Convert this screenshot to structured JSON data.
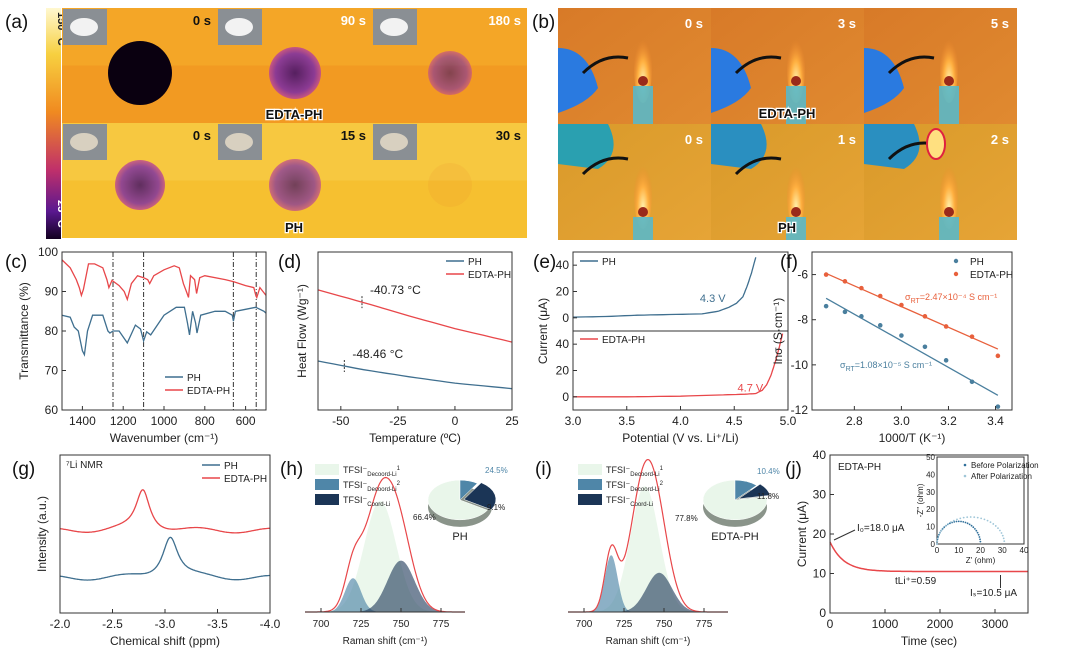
{
  "panels": {
    "a": {
      "label": "(a)",
      "colorbar": {
        "max": "150 °C",
        "min": "25 °C"
      },
      "rows": [
        {
          "sample": "EDTA-PH",
          "times": [
            "0 s",
            "90 s",
            "180 s"
          ],
          "spot_visibility": [
            1.0,
            0.85,
            0.6
          ]
        },
        {
          "sample": "PH",
          "times": [
            "0 s",
            "15 s",
            "30 s"
          ],
          "spot_visibility": [
            0.8,
            0.7,
            0.15
          ]
        }
      ]
    },
    "b": {
      "label": "(b)",
      "rows": [
        {
          "sample": "EDTA-PH",
          "times": [
            "0 s",
            "3 s",
            "5 s"
          ]
        },
        {
          "sample": "PH",
          "times": [
            "0 s",
            "1 s",
            "2 s"
          ]
        }
      ]
    },
    "g_label": "(g)",
    "h_label": "(h)",
    "i_label": "(i)",
    "j_label": "(j)"
  },
  "colors": {
    "PH": "#3f6f8f",
    "EDTA-PH": "#e8474a",
    "comp1": "#e9f6ea",
    "comp2": "#4f86a8",
    "comp3": "#1b3556"
  },
  "chart_data": [
    {
      "id": "c",
      "label": "(c)",
      "type": "line",
      "xlabel": "Wavenumber (cm⁻¹)",
      "ylabel": "Transmittance (%)",
      "xlim": [
        1500,
        500
      ],
      "ylim": [
        60,
        100
      ],
      "xticks": [
        1400,
        1200,
        1000,
        800,
        600
      ],
      "yticks": [
        60,
        70,
        80,
        90,
        100
      ],
      "vlines": [
        1250,
        1100,
        660,
        548
      ],
      "legend": "bottom-right",
      "series": [
        {
          "name": "PH",
          "x": [
            1500,
            1460,
            1440,
            1420,
            1400,
            1390,
            1375,
            1350,
            1300,
            1275,
            1265,
            1250,
            1220,
            1180,
            1140,
            1115,
            1100,
            1085,
            1065,
            1000,
            940,
            900,
            885,
            875,
            860,
            845,
            838,
            820,
            750,
            700,
            665,
            660,
            650,
            600,
            550,
            510,
            500
          ],
          "y": [
            84,
            83.5,
            81,
            80,
            75,
            74,
            80,
            84,
            84,
            80,
            79.5,
            80,
            80,
            77,
            81.5,
            80.5,
            77.5,
            79.8,
            79,
            84,
            86,
            86,
            82,
            79,
            85,
            82,
            79.5,
            84,
            85,
            85,
            84,
            82.5,
            85,
            85.5,
            86,
            85,
            84.5
          ]
        },
        {
          "name": "EDTA-PH",
          "x": [
            1500,
            1460,
            1430,
            1415,
            1405,
            1395,
            1370,
            1340,
            1300,
            1280,
            1270,
            1255,
            1220,
            1195,
            1180,
            1160,
            1130,
            1100,
            1080,
            1070,
            1050,
            1000,
            950,
            925,
            905,
            890,
            880,
            870,
            850,
            840,
            825,
            800,
            700,
            660,
            600,
            560,
            550,
            545,
            530,
            500
          ],
          "y": [
            98,
            96,
            93,
            91,
            89,
            90.5,
            97,
            97,
            96,
            93,
            91,
            92.8,
            91.5,
            90,
            88,
            92,
            94,
            93.5,
            93,
            92,
            94,
            95.5,
            96.5,
            96,
            92,
            90,
            88.5,
            94,
            93,
            89.5,
            93.5,
            94,
            93,
            92.5,
            91.5,
            91,
            89,
            88.5,
            91,
            89
          ]
        }
      ]
    },
    {
      "id": "d",
      "label": "(d)",
      "type": "line",
      "xlabel": "Temperature (ºC)",
      "ylabel": "Heat Flow (Wg⁻¹)",
      "xlim": [
        -60,
        25
      ],
      "ylim": [
        0,
        10
      ],
      "xticks": [
        -50,
        -25,
        0,
        25
      ],
      "legend": "top-right",
      "series": [
        {
          "name": "PH",
          "x": [
            -60,
            -40,
            -20,
            0,
            25
          ],
          "y": [
            3.1,
            2.55,
            2.1,
            1.7,
            1.35
          ],
          "tg": -48.46,
          "tg_label": "-48.46 °C"
        },
        {
          "name": "EDTA-PH",
          "x": [
            -60,
            -40,
            -20,
            0,
            25
          ],
          "y": [
            7.6,
            6.8,
            5.95,
            5.15,
            4.3
          ],
          "tg": -40.73,
          "tg_label": "-40.73 °C"
        }
      ]
    },
    {
      "id": "e",
      "label": "(e)",
      "type": "line",
      "xlabel": "Potential (V vs. Li⁺/Li)",
      "ylabel": "Current (μA)",
      "xlim": [
        3.0,
        5.0
      ],
      "ylim": [
        -10,
        50
      ],
      "xticks": [
        3.0,
        3.5,
        4.0,
        4.5,
        5.0
      ],
      "yticks": [
        0,
        20,
        40
      ],
      "series": [
        {
          "name": "PH",
          "x": [
            3.0,
            3.3,
            3.6,
            3.9,
            4.2,
            4.35,
            4.45,
            4.52,
            4.58,
            4.62,
            4.66,
            4.7
          ],
          "y": [
            0.5,
            1,
            2,
            2.5,
            3,
            5,
            8,
            11,
            16,
            24,
            34,
            46
          ],
          "window_label": "4.3 V"
        },
        {
          "name": "EDTA-PH",
          "x": [
            3.0,
            3.5,
            4.0,
            4.4,
            4.6,
            4.7,
            4.76,
            4.8,
            4.84,
            4.88,
            4.92,
            4.95
          ],
          "y": [
            0,
            0,
            0.5,
            1.5,
            2,
            2.5,
            5,
            9,
            16,
            26,
            38,
            48
          ],
          "window_label": "4.7 V"
        }
      ]
    },
    {
      "id": "f",
      "label": "(f)",
      "type": "scatter",
      "xlabel": "1000/T (K⁻¹)",
      "ylabel": "lnσ (S·cm⁻¹)",
      "xlim": [
        2.62,
        3.47
      ],
      "ylim": [
        -12,
        -5
      ],
      "xticks": [
        2.8,
        3.0,
        3.2,
        3.4
      ],
      "yticks": [
        -12,
        -10,
        -8,
        -6
      ],
      "legend": "top-right",
      "series": [
        {
          "name": "PH",
          "x": [
            2.68,
            2.76,
            2.83,
            2.91,
            3.0,
            3.1,
            3.19,
            3.3,
            3.41
          ],
          "y": [
            -7.4,
            -7.65,
            -7.85,
            -8.25,
            -8.7,
            -9.2,
            -9.8,
            -10.75,
            -11.85
          ],
          "fit": [
            [
              2.68,
              -7.05
            ],
            [
              3.41,
              -11.35
            ]
          ],
          "sigma": {
            "sym": "σ",
            "sub": "RT",
            "val": "=1.08×10⁻⁵ S cm⁻¹"
          }
        },
        {
          "name": "EDTA-PH",
          "x": [
            2.68,
            2.76,
            2.83,
            2.91,
            3.0,
            3.1,
            3.19,
            3.3,
            3.41
          ],
          "y": [
            -6.0,
            -6.3,
            -6.6,
            -6.95,
            -7.35,
            -7.85,
            -8.3,
            -8.75,
            -9.6
          ],
          "fit": [
            [
              2.68,
              -5.95
            ],
            [
              3.41,
              -9.3
            ]
          ],
          "sigma": {
            "sym": "σ",
            "sub": "RT",
            "val": "=2.47×10⁻⁴ S cm⁻¹"
          }
        }
      ]
    },
    {
      "id": "g",
      "label": "(g)",
      "type": "line",
      "title": "⁷Li NMR",
      "xlabel": "Chemical shift (ppm)",
      "ylabel": "Intensity (a.u.)",
      "xlim": [
        -2.0,
        -4.0
      ],
      "ylim": [
        0,
        10
      ],
      "xticks": [
        -2.0,
        -2.5,
        -3.0,
        -3.5,
        -4.0
      ],
      "legend": "top-right",
      "series": [
        {
          "name": "PH",
          "peak": -3.05,
          "width": 0.09,
          "baseline": 2.2,
          "height": 2.7
        },
        {
          "name": "EDTA-PH",
          "peak": -2.79,
          "width": 0.08,
          "baseline": 5.2,
          "height": 2.6
        }
      ]
    },
    {
      "id": "h",
      "label": "(h)",
      "type": "area",
      "xlabel": "Raman shift (cm⁻¹)",
      "xlim": [
        690,
        790
      ],
      "ylim": [
        0,
        1.05
      ],
      "xticks": [
        700,
        725,
        750,
        775
      ],
      "components": [
        {
          "name": "TFSI⁻",
          "sub": "Decoord-Li",
          "sup": "1",
          "center": 737,
          "sigma": 10,
          "amp": 0.82
        },
        {
          "name": "TFSI⁻",
          "sub": "Decoord-Li",
          "sup": "2",
          "center": 720,
          "sigma": 5,
          "amp": 0.25
        },
        {
          "name": "TFSI⁻",
          "sub": "Coord-Li",
          "sup": "",
          "center": 750,
          "sigma": 8.5,
          "amp": 0.38
        }
      ],
      "pie": {
        "title": "PH",
        "values": [
          66.4,
          9.1,
          24.5
        ],
        "labels": [
          "66.4%",
          "9.1%",
          "24.5%"
        ]
      }
    },
    {
      "id": "i",
      "label": "(i)",
      "type": "area",
      "xlabel": "Raman shift (cm⁻¹)",
      "xlim": [
        690,
        790
      ],
      "ylim": [
        0,
        1.05
      ],
      "xticks": [
        700,
        725,
        750,
        775
      ],
      "components": [
        {
          "name": "TFSI⁻",
          "sub": "Decoord-Li",
          "sup": "1",
          "center": 738,
          "sigma": 9,
          "amp": 0.93
        },
        {
          "name": "TFSI⁻",
          "sub": "Decoord-Li",
          "sup": "2",
          "center": 717,
          "sigma": 4,
          "amp": 0.42
        },
        {
          "name": "TFSI⁻",
          "sub": "Coord-Li",
          "sup": "",
          "center": 747,
          "sigma": 8,
          "amp": 0.29
        }
      ],
      "pie": {
        "title": "EDTA-PH",
        "values": [
          77.8,
          11.8,
          10.4
        ],
        "labels": [
          "77.8%",
          "11.8%",
          "10.4%"
        ]
      }
    },
    {
      "id": "j",
      "label": "(j)",
      "type": "line",
      "title": "EDTA-PH",
      "xlabel": "Time (sec)",
      "ylabel": "Current (μA)",
      "xlim": [
        0,
        3600
      ],
      "ylim": [
        0,
        40
      ],
      "xticks": [
        0,
        1000,
        2000,
        3000
      ],
      "yticks": [
        10,
        20,
        30,
        40
      ],
      "series": [
        {
          "name": "EDTA-PH",
          "I0": 18.0,
          "Is": 10.5,
          "tau": 250
        }
      ],
      "annotations": {
        "I0": "I₀=18.0 μA",
        "Is": "Iₛ=10.5 μA",
        "t": "tLi⁺=0.59"
      },
      "inset": {
        "xlabel": "Z' (ohm)",
        "ylabel": "-Z'' (ohm)",
        "xlim": [
          0,
          40
        ],
        "ylim": [
          0,
          50
        ],
        "xticks": [
          0,
          10,
          20,
          30,
          40
        ],
        "yticks": [
          0,
          10,
          20,
          30,
          40,
          50
        ],
        "series": [
          {
            "name": "Before Polarization",
            "center": 10,
            "radius": 10,
            "peak": 13
          },
          {
            "name": "After Polarization",
            "center": 15.5,
            "radius": 15.5,
            "peak": 15.5
          }
        ]
      }
    }
  ]
}
